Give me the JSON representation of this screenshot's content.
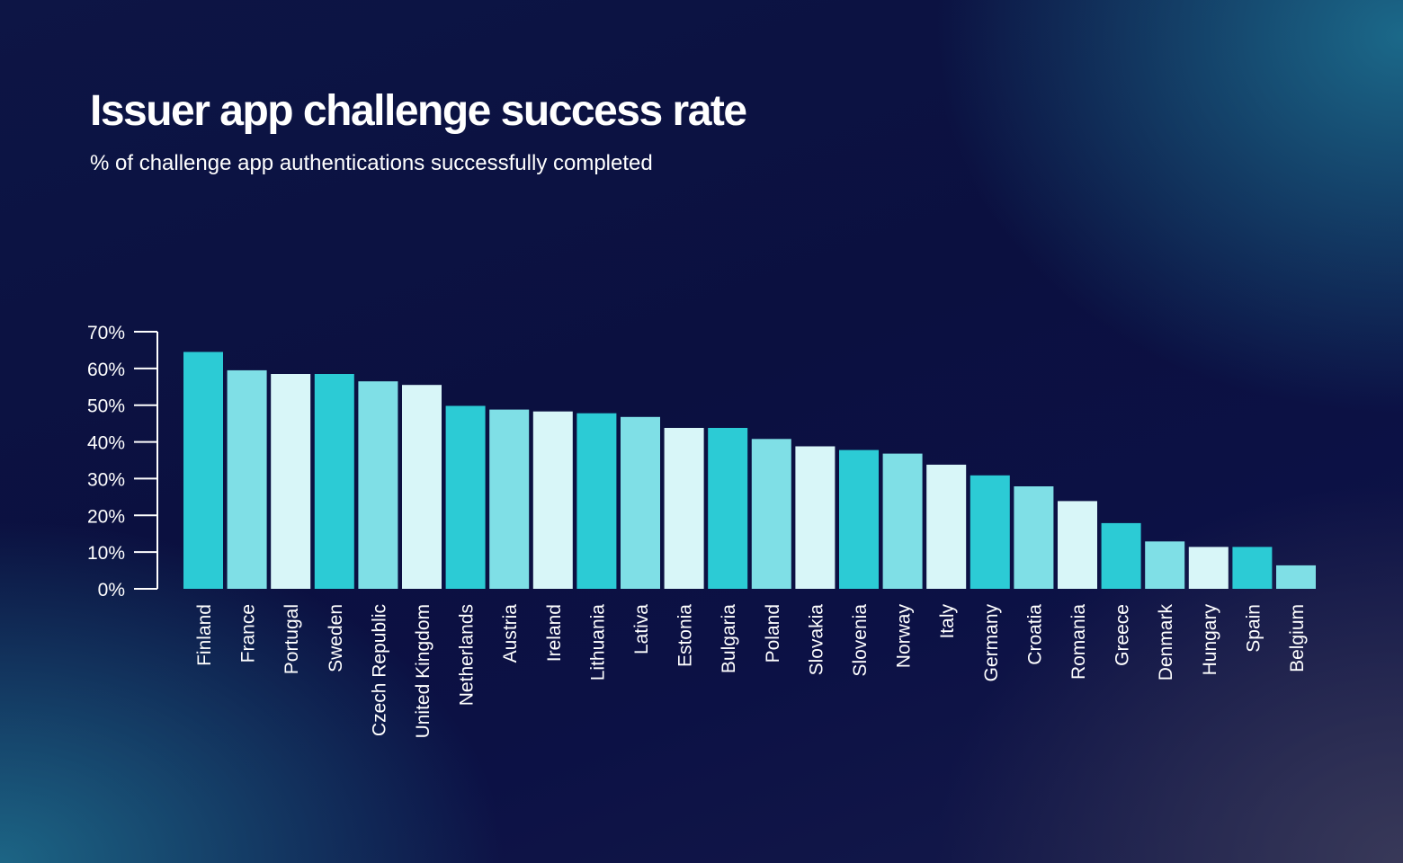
{
  "header": {
    "title": "Issuer app challenge success rate",
    "subtitle": "% of challenge app authentications successfully completed"
  },
  "colors": {
    "teal": "#2ccbd5",
    "light_teal": "#7fdfe6",
    "pale": "#d8f6f8",
    "axis": "#ffffff"
  },
  "chart_data": {
    "type": "bar",
    "title": "Issuer app challenge success rate",
    "subtitle": "% of challenge app authentications successfully completed",
    "xlabel": "",
    "ylabel": "",
    "ylim": [
      0,
      70
    ],
    "yticks": [
      "0%",
      "10%",
      "20%",
      "30%",
      "40%",
      "50%",
      "60%",
      "70%"
    ],
    "grid": false,
    "legend": "none",
    "categories": [
      "Finland",
      "France",
      "Portugal",
      "Sweden",
      "Czech Republic",
      "United Kingdom",
      "Netherlands",
      "Austria",
      "Ireland",
      "Lithuania",
      "Lativa",
      "Estonia",
      "Bulgaria",
      "Poland",
      "Slovakia",
      "Slovenia",
      "Norway",
      "Italy",
      "Germany",
      "Croatia",
      "Romania",
      "Greece",
      "Denmark",
      "Hungary",
      "Spain",
      "Belgium"
    ],
    "values": [
      64.5,
      59.5,
      58.5,
      58.5,
      56.5,
      55.5,
      49.8,
      48.8,
      48.3,
      47.8,
      46.8,
      43.8,
      43.8,
      40.8,
      38.8,
      37.8,
      36.8,
      33.8,
      30.9,
      27.9,
      23.9,
      17.9,
      12.9,
      11.4,
      11.4,
      6.4
    ],
    "bar_colors": [
      "#2ccbd5",
      "#7fdfe6",
      "#d8f6f8",
      "#2ccbd5",
      "#7fdfe6",
      "#d8f6f8",
      "#2ccbd5",
      "#7fdfe6",
      "#d8f6f8",
      "#2ccbd5",
      "#7fdfe6",
      "#d8f6f8",
      "#2ccbd5",
      "#7fdfe6",
      "#d8f6f8",
      "#2ccbd5",
      "#7fdfe6",
      "#d8f6f8",
      "#2ccbd5",
      "#7fdfe6",
      "#d8f6f8",
      "#2ccbd5",
      "#7fdfe6",
      "#d8f6f8",
      "#2ccbd5",
      "#7fdfe6"
    ]
  }
}
